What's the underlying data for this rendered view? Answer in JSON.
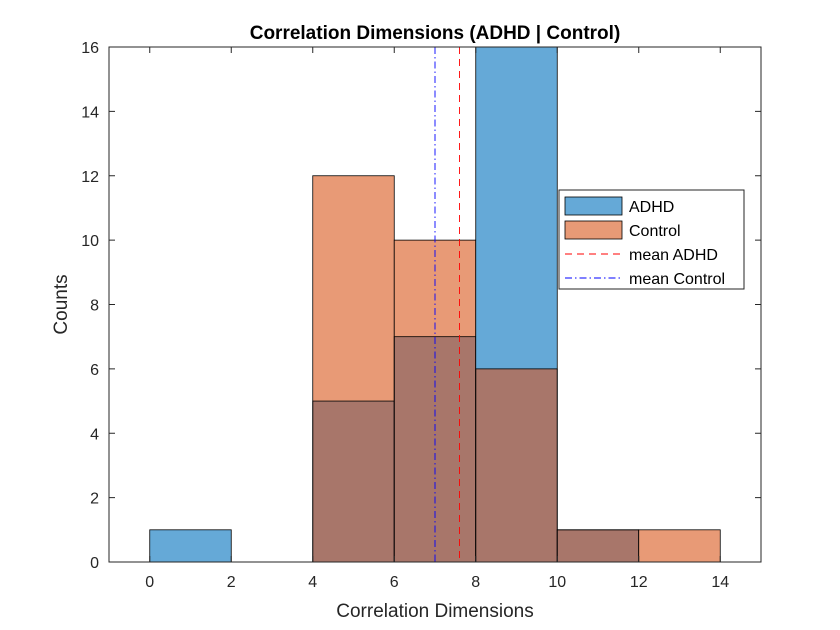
{
  "chart_data": {
    "type": "bar",
    "title": "Correlation Dimensions (ADHD | Control)",
    "xlabel": "Correlation Dimensions",
    "ylabel": "Counts",
    "xlim": [
      -1,
      15
    ],
    "ylim": [
      0,
      16
    ],
    "x_ticks": [
      "0",
      "2",
      "4",
      "6",
      "8",
      "10",
      "12",
      "14"
    ],
    "y_ticks": [
      "0",
      "2",
      "4",
      "6",
      "8",
      "10",
      "12",
      "14",
      "16"
    ],
    "bin_edges": [
      0,
      2,
      4,
      6,
      8,
      10,
      12,
      14
    ],
    "series": [
      {
        "name": "ADHD",
        "values": [
          1,
          0,
          5,
          7,
          16,
          1,
          0
        ],
        "color": "#0072BD",
        "face_color": "#65A9D7"
      },
      {
        "name": "Control",
        "values": [
          0,
          0,
          12,
          10,
          6,
          1,
          1
        ],
        "color": "#D95319",
        "face_color": "#E89A76"
      }
    ],
    "overlap_color": "#A8766A",
    "reference_lines": [
      {
        "name": "mean ADHD",
        "x": 7.6,
        "style": "dashed",
        "color": "#FF0000"
      },
      {
        "name": "mean Control",
        "x": 7.0,
        "style": "dashdot",
        "color": "#0000FF"
      }
    ],
    "legend_placement": "right",
    "grid": false
  }
}
